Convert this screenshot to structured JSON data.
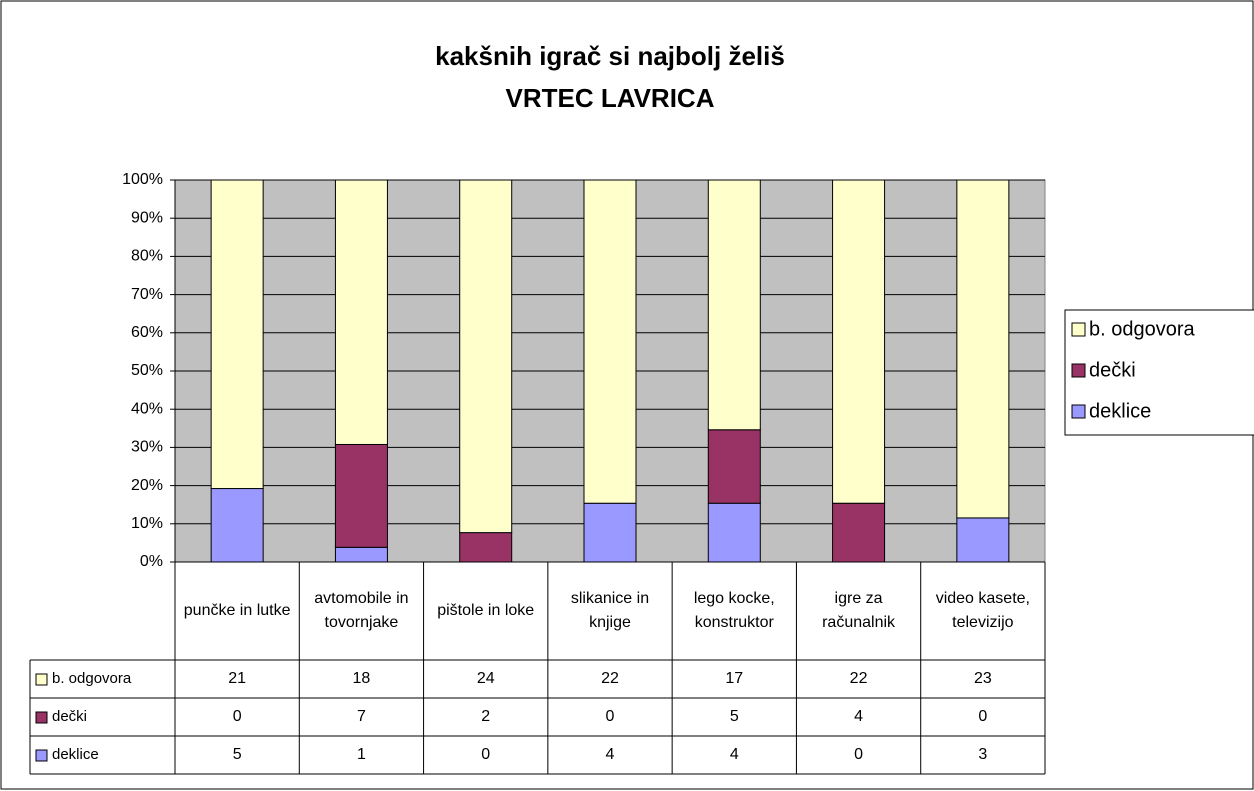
{
  "chart_data": {
    "type": "bar",
    "stacked": true,
    "percent_stacked": true,
    "title": "kakšnih igrač si najbolj želiš",
    "subtitle": "VRTEC LAVRICA",
    "categories": [
      "punčke in lutke",
      "avtomobile in tovornjake",
      "pištole in loke",
      "slikanice in knjige",
      "lego kocke, konstruktor",
      "igre za računalnik",
      "video kasete, televizijo"
    ],
    "series": [
      {
        "name": "deklice",
        "color": "#9999ff",
        "values": [
          5,
          1,
          0,
          4,
          4,
          0,
          3
        ]
      },
      {
        "name": "dečki",
        "color": "#993366",
        "values": [
          0,
          7,
          2,
          0,
          5,
          4,
          0
        ]
      },
      {
        "name": "b. odgovora",
        "color": "#ffffcc",
        "values": [
          21,
          18,
          24,
          22,
          17,
          22,
          23
        ]
      }
    ],
    "ylim": [
      0,
      100
    ],
    "yticks": [
      {
        "value": 0,
        "label": "0%"
      },
      {
        "value": 10,
        "label": "10%"
      },
      {
        "value": 20,
        "label": "20%"
      },
      {
        "value": 30,
        "label": "30%"
      },
      {
        "value": 40,
        "label": "40%"
      },
      {
        "value": 50,
        "label": "50%"
      },
      {
        "value": 60,
        "label": "60%"
      },
      {
        "value": 70,
        "label": "70%"
      },
      {
        "value": 80,
        "label": "80%"
      },
      {
        "value": 90,
        "label": "90%"
      },
      {
        "value": 100,
        "label": "100%"
      }
    ],
    "grid": true,
    "legend": "right",
    "data_table": true,
    "plot_background": "#c0c0c0"
  }
}
